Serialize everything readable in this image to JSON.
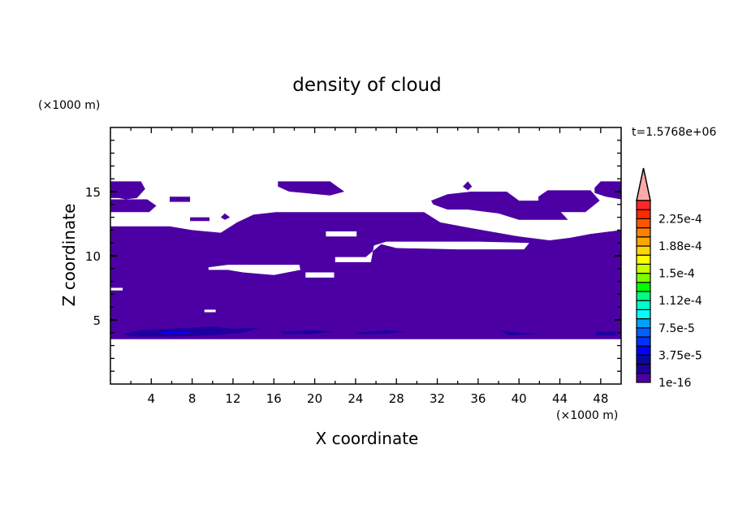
{
  "chart_data": {
    "type": "contour",
    "title": "density of cloud",
    "xlabel": "X coordinate",
    "ylabel": "Z coordinate",
    "x_unit": "(×1000 m)",
    "y_unit": "(×1000 m)",
    "time_label": "t=1.5768e+06",
    "xlim": [
      0,
      50
    ],
    "ylim": [
      0,
      20
    ],
    "xticks_major": [
      4,
      8,
      12,
      16,
      20,
      24,
      28,
      32,
      36,
      40,
      44,
      48
    ],
    "xticks_minor_step": 2,
    "yticks_major": [
      5,
      10,
      15
    ],
    "yticks_minor_step": 1,
    "grid": false,
    "colorbar": {
      "levels_labeled": [
        "2.25e-4",
        "1.88e-4",
        "1.5e-4",
        "1.12e-4",
        "7.5e-5",
        "3.75e-5",
        "1e-16"
      ],
      "level_step": 1.25e-05,
      "colors": [
        "#4c00a4",
        "#1e00a0",
        "#0a0a9a",
        "#0000ff",
        "#0032ff",
        "#0060ff",
        "#00a0ff",
        "#00ffff",
        "#00ffc8",
        "#00ff80",
        "#00ff00",
        "#80ff00",
        "#c8ff00",
        "#ffff00",
        "#ffd700",
        "#ffa500",
        "#ff7f00",
        "#ff5500",
        "#ff2a00",
        "#ff2828"
      ],
      "overflow_color": "#ffaaaa",
      "placement": "right"
    },
    "regions": [
      {
        "level": 1,
        "kind": "fill",
        "points": [
          [
            0,
            3.5
          ],
          [
            50,
            3.5
          ],
          [
            50,
            12.0
          ],
          [
            47,
            11.7
          ],
          [
            45,
            11.4
          ],
          [
            43,
            11.2
          ],
          [
            40,
            11.5
          ],
          [
            35,
            12.2
          ],
          [
            32.3,
            12.6
          ],
          [
            30.7,
            13.4
          ],
          [
            16.2,
            13.4
          ],
          [
            14,
            13.2
          ],
          [
            12.4,
            12.6
          ],
          [
            10.8,
            11.8
          ],
          [
            8,
            12.0
          ],
          [
            5.8,
            12.3
          ],
          [
            0,
            12.3
          ]
        ]
      },
      {
        "level": 0,
        "kind": "hole",
        "points": [
          [
            22,
            9.9
          ],
          [
            25,
            9.9
          ],
          [
            26.5,
            10.9
          ],
          [
            28,
            10.6
          ],
          [
            34,
            10.5
          ],
          [
            40.5,
            10.5
          ],
          [
            41,
            11.0
          ],
          [
            36,
            11.1
          ],
          [
            27,
            11.1
          ],
          [
            25.8,
            10.8
          ],
          [
            25.5,
            9.5
          ],
          [
            22,
            9.5
          ]
        ]
      },
      {
        "level": 0,
        "kind": "hole",
        "points": [
          [
            21.1,
            11.9
          ],
          [
            24.1,
            11.9
          ],
          [
            24.1,
            11.5
          ],
          [
            21.1,
            11.5
          ]
        ]
      },
      {
        "level": 0,
        "kind": "hole",
        "points": [
          [
            9.6,
            9.1
          ],
          [
            11.5,
            9.3
          ],
          [
            18.5,
            9.3
          ],
          [
            18.6,
            8.9
          ],
          [
            16,
            8.5
          ],
          [
            13,
            8.7
          ],
          [
            11.5,
            8.9
          ],
          [
            9.6,
            8.9
          ]
        ]
      },
      {
        "level": 0,
        "kind": "hole",
        "points": [
          [
            19.1,
            8.7
          ],
          [
            21.9,
            8.7
          ],
          [
            21.9,
            8.3
          ],
          [
            19.1,
            8.3
          ]
        ]
      },
      {
        "level": 0,
        "kind": "hole",
        "points": [
          [
            0,
            7.5
          ],
          [
            1.2,
            7.5
          ],
          [
            1.2,
            7.3
          ],
          [
            0,
            7.3
          ]
        ]
      },
      {
        "level": 0,
        "kind": "hole",
        "points": [
          [
            9.2,
            5.8
          ],
          [
            10.3,
            5.8
          ],
          [
            10.3,
            5.6
          ],
          [
            9.2,
            5.6
          ]
        ]
      },
      {
        "level": 1,
        "kind": "fill",
        "points": [
          [
            0,
            14.5
          ],
          [
            0,
            15.8
          ],
          [
            3.0,
            15.8
          ],
          [
            3.4,
            15.2
          ],
          [
            2.6,
            14.5
          ],
          [
            1.5,
            14.4
          ],
          [
            0.8,
            14.5
          ]
        ]
      },
      {
        "level": 1,
        "kind": "fill",
        "points": [
          [
            0,
            13.4
          ],
          [
            0,
            14.4
          ],
          [
            3.6,
            14.4
          ],
          [
            4.5,
            13.9
          ],
          [
            3.8,
            13.4
          ]
        ]
      },
      {
        "level": 1,
        "kind": "fill",
        "points": [
          [
            5.8,
            14.2
          ],
          [
            5.8,
            14.6
          ],
          [
            7.8,
            14.6
          ],
          [
            7.8,
            14.2
          ]
        ]
      },
      {
        "level": 1,
        "kind": "fill",
        "points": [
          [
            7.8,
            12.7
          ],
          [
            7.8,
            13.0
          ],
          [
            9.7,
            13.0
          ],
          [
            9.7,
            12.7
          ]
        ]
      },
      {
        "level": 1,
        "kind": "fill",
        "points": [
          [
            10.8,
            13.0
          ],
          [
            11.2,
            13.3
          ],
          [
            11.7,
            13.0
          ],
          [
            11.2,
            12.8
          ]
        ]
      },
      {
        "level": 1,
        "kind": "fill",
        "points": [
          [
            16.4,
            15.8
          ],
          [
            21.5,
            15.8
          ],
          [
            22.9,
            15.0
          ],
          [
            21.5,
            14.7
          ],
          [
            17.5,
            15.0
          ],
          [
            16.4,
            15.4
          ]
        ]
      },
      {
        "level": 1,
        "kind": "fill",
        "points": [
          [
            31.4,
            14.3
          ],
          [
            33,
            14.8
          ],
          [
            35.3,
            15.0
          ],
          [
            38.8,
            15.0
          ],
          [
            40,
            14.3
          ],
          [
            43,
            14.3
          ],
          [
            44.1,
            13.4
          ],
          [
            44.8,
            12.8
          ],
          [
            40,
            12.8
          ],
          [
            38,
            13.3
          ],
          [
            35,
            13.6
          ],
          [
            33,
            13.6
          ],
          [
            31.6,
            14.0
          ]
        ]
      },
      {
        "level": 1,
        "kind": "fill",
        "points": [
          [
            34.5,
            15.4
          ],
          [
            35.0,
            15.8
          ],
          [
            35.4,
            15.4
          ],
          [
            35.0,
            15.1
          ]
        ]
      },
      {
        "level": 1,
        "kind": "fill",
        "points": [
          [
            41.9,
            14.6
          ],
          [
            42.8,
            15.1
          ],
          [
            47.0,
            15.1
          ],
          [
            47.9,
            14.3
          ],
          [
            46.5,
            13.4
          ],
          [
            43.5,
            13.4
          ],
          [
            41.9,
            14.0
          ]
        ]
      },
      {
        "level": 1,
        "kind": "fill",
        "points": [
          [
            47.4,
            15.3
          ],
          [
            48.0,
            15.8
          ],
          [
            50,
            15.8
          ],
          [
            50,
            14.4
          ],
          [
            48.5,
            14.6
          ],
          [
            47.4,
            14.9
          ]
        ]
      },
      {
        "level": 2,
        "kind": "fill",
        "points": [
          [
            1.2,
            3.9
          ],
          [
            3,
            4.2
          ],
          [
            5,
            4.3
          ],
          [
            8,
            4.4
          ],
          [
            10,
            4.5
          ],
          [
            12,
            4.3
          ],
          [
            14.8,
            4.4
          ],
          [
            13,
            4.0
          ],
          [
            10,
            3.8
          ],
          [
            6,
            3.7
          ],
          [
            2,
            3.7
          ]
        ]
      },
      {
        "level": 2,
        "kind": "fill",
        "points": [
          [
            16.5,
            4.1
          ],
          [
            20,
            4.2
          ],
          [
            22,
            4.1
          ],
          [
            20,
            3.9
          ],
          [
            17,
            3.9
          ]
        ]
      },
      {
        "level": 2,
        "kind": "fill",
        "points": [
          [
            24,
            4.0
          ],
          [
            27,
            4.2
          ],
          [
            29,
            4.1
          ],
          [
            27,
            3.9
          ],
          [
            24,
            3.9
          ]
        ]
      },
      {
        "level": 2,
        "kind": "fill",
        "points": [
          [
            38,
            4.2
          ],
          [
            40,
            4.0
          ],
          [
            42,
            3.9
          ],
          [
            39,
            3.8
          ]
        ]
      },
      {
        "level": 2,
        "kind": "fill",
        "points": [
          [
            47.5,
            4.1
          ],
          [
            49.5,
            4.1
          ],
          [
            49.5,
            3.8
          ],
          [
            47.5,
            3.8
          ]
        ]
      },
      {
        "level": 4,
        "kind": "fill",
        "points": [
          [
            5.0,
            4.1
          ],
          [
            7.5,
            4.1
          ],
          [
            7.5,
            3.95
          ],
          [
            5.0,
            3.95
          ]
        ]
      }
    ]
  }
}
